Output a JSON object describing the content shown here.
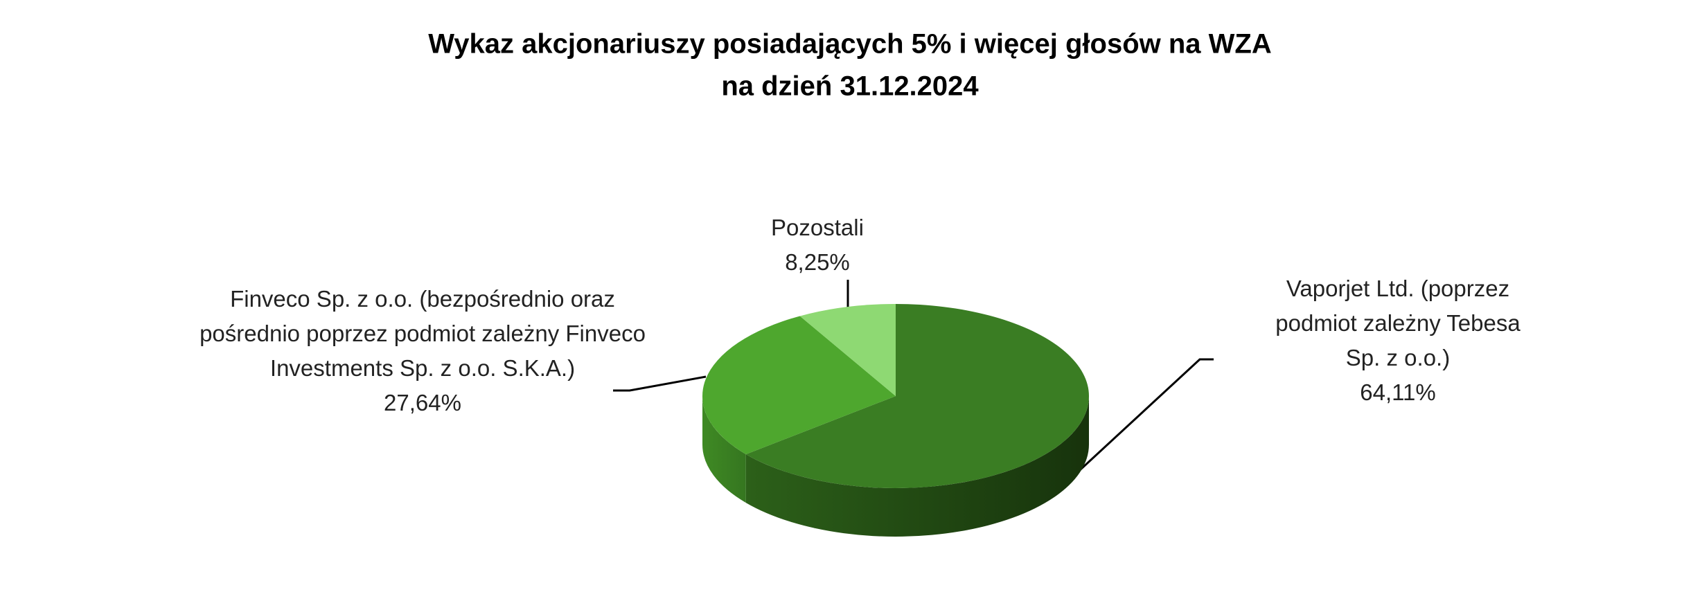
{
  "chart_data": {
    "type": "pie3d",
    "title": "Wykaz akcjonariuszy posiadających 5% i więcej głosów na WZA",
    "subtitle": "na dzień 31.12.2024",
    "categories": [
      "Vaporjet Ltd. (poprzez podmiot zależny Tebesa Sp. z o.o.)",
      "Finveco Sp. z o.o. (bezpośrednio oraz pośrednio poprzez podmiot zależny Finveco Investments Sp. z o.o. S.K.A.)",
      "Pozostali"
    ],
    "values": [
      64.11,
      27.64,
      8.25
    ],
    "value_labels": [
      "64,11%",
      "27,64%",
      "8,25%"
    ],
    "colors": [
      "#3a7d23",
      "#4ea72e",
      "#8ed973"
    ]
  }
}
